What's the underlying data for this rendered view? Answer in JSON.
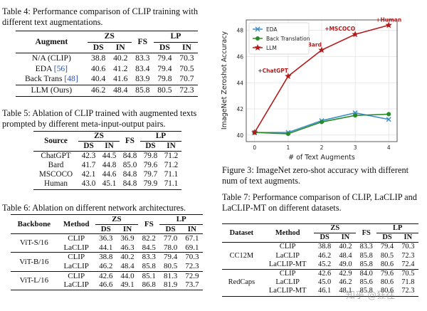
{
  "table4": {
    "caption_label": "Table 4:",
    "caption_text": "Performance comparison of CLIP training with different text augmentations.",
    "header": {
      "col0": "Augment",
      "zs": "ZS",
      "fs": "FS",
      "lp": "LP",
      "ds": "DS",
      "in": "IN",
      "ds2": "DS",
      "in2": "IN"
    },
    "rows": [
      {
        "name": "N/A (CLIP)",
        "ref": "",
        "vals": [
          "38.8",
          "40.2",
          "83.3",
          "79.4",
          "70.3"
        ]
      },
      {
        "name": "EDA ",
        "ref": "[56]",
        "vals": [
          "40.6",
          "41.2",
          "83.4",
          "79.4",
          "70.5"
        ]
      },
      {
        "name": "Back Trans ",
        "ref": "[48]",
        "vals": [
          "40.4",
          "41.6",
          "83.9",
          "79.8",
          "70.7"
        ]
      },
      {
        "name": "LLM (Ours)",
        "ref": "",
        "vals": [
          "46.2",
          "48.4",
          "85.8",
          "80.5",
          "72.3"
        ]
      }
    ]
  },
  "table5": {
    "caption_label": "Table 5:",
    "caption_text": "Ablation of CLIP trained with augmented texts prompted by different meta-input-output pairs.",
    "header": {
      "col0": "Source",
      "zs": "ZS",
      "fs": "FS",
      "lp": "LP",
      "ds": "DS",
      "in": "IN",
      "ds2": "DS",
      "in2": "IN"
    },
    "rows": [
      {
        "name": "ChatGPT",
        "vals": [
          "42.3",
          "44.5",
          "84.8",
          "79.8",
          "71.2"
        ]
      },
      {
        "name": "Bard",
        "vals": [
          "41.7",
          "44.8",
          "85.0",
          "79.6",
          "71.2"
        ]
      },
      {
        "name": "MSCOCO",
        "vals": [
          "42.1",
          "44.6",
          "84.8",
          "79.7",
          "71.1"
        ]
      },
      {
        "name": "Human",
        "vals": [
          "43.0",
          "45.1",
          "84.8",
          "79.9",
          "71.1"
        ]
      }
    ]
  },
  "table6": {
    "caption_label": "Table 6:",
    "caption_text": "Ablation on different network architectures.",
    "header": {
      "col0": "Backbone",
      "col1": "Method",
      "zs": "ZS",
      "fs": "FS",
      "lp": "LP",
      "ds": "DS",
      "in": "IN",
      "ds2": "DS",
      "in2": "IN"
    },
    "groups": [
      {
        "name": "ViT-S/16",
        "rows": [
          {
            "method": "CLIP",
            "vals": [
              "36.3",
              "36.9",
              "82.2",
              "77.0",
              "67.1"
            ]
          },
          {
            "method": "LaCLIP",
            "vals": [
              "44.1",
              "46.3",
              "84.5",
              "78.0",
              "69.1"
            ]
          }
        ]
      },
      {
        "name": "ViT-B/16",
        "rows": [
          {
            "method": "CLIP",
            "vals": [
              "38.8",
              "40.2",
              "83.3",
              "79.4",
              "70.3"
            ]
          },
          {
            "method": "LaCLIP",
            "vals": [
              "46.2",
              "48.4",
              "85.8",
              "80.5",
              "72.3"
            ]
          }
        ]
      },
      {
        "name": "ViT-L/16",
        "rows": [
          {
            "method": "CLIP",
            "vals": [
              "42.6",
              "44.0",
              "85.1",
              "81.3",
              "72.9"
            ]
          },
          {
            "method": "LaCLIP",
            "vals": [
              "46.6",
              "49.1",
              "86.8",
              "81.9",
              "73.7"
            ]
          }
        ]
      }
    ]
  },
  "table7": {
    "caption_label": "Table 7:",
    "caption_text": "Performance comparison of CLIP, LaCLIP and LaCLIP-MT on different datasets.",
    "header": {
      "col0": "Dataset",
      "col1": "Method",
      "zs": "ZS",
      "fs": "FS",
      "lp": "LP",
      "ds": "DS",
      "in": "IN",
      "ds2": "DS",
      "in2": "IN"
    },
    "groups": [
      {
        "name": "CC12M",
        "rows": [
          {
            "method": "CLIP",
            "vals": [
              "38.8",
              "40.2",
              "83.3",
              "79.4",
              "70.3"
            ]
          },
          {
            "method": "LaCLIP",
            "vals": [
              "46.2",
              "48.4",
              "85.8",
              "80.5",
              "72.3"
            ]
          },
          {
            "method": "LaCLIP-MT",
            "vals": [
              "45.2",
              "49.0",
              "85.8",
              "80.6",
              "72.4"
            ]
          }
        ]
      },
      {
        "name": "RedCaps",
        "rows": [
          {
            "method": "CLIP",
            "vals": [
              "42.6",
              "42.9",
              "84.0",
              "79.6",
              "70.5"
            ]
          },
          {
            "method": "LaCLIP",
            "vals": [
              "45.0",
              "46.2",
              "85.6",
              "80.6",
              "71.8"
            ]
          },
          {
            "method": "LaCLIP-MT",
            "vals": [
              "46.1",
              "48.1",
              "85.8",
              "80.6",
              "72.3"
            ]
          }
        ]
      }
    ]
  },
  "figure3": {
    "caption_label": "Figure 3:",
    "caption_text": "ImageNet zero-shot accuracy with different num of text augments."
  },
  "watermark": "知乎 @狂往",
  "colors": {
    "eda": "#3d8fc4",
    "back_translation": "#2a8a2a",
    "llm": "#b31b1b",
    "annotation": "#b31b1b"
  },
  "chart_data": {
    "type": "line",
    "title": "",
    "xlabel": "# of Text Augments",
    "ylabel": "ImageNet Zeroshot Accuracy",
    "x": [
      0,
      1,
      2,
      3,
      4
    ],
    "xlim": [
      -0.25,
      4.25
    ],
    "ylim": [
      39.5,
      48.8
    ],
    "xticks": [
      "0",
      "1",
      "2",
      "3",
      "4"
    ],
    "yticks": [
      "40",
      "42",
      "44",
      "46",
      "48"
    ],
    "legend_position": "top-left",
    "grid": true,
    "series": [
      {
        "name": "EDA",
        "values": [
          40.2,
          40.2,
          41.1,
          41.7,
          41.2
        ],
        "marker": "x"
      },
      {
        "name": "Back Translation",
        "values": [
          40.2,
          40.1,
          41.0,
          41.5,
          41.6
        ],
        "marker": "dot"
      },
      {
        "name": "LLM",
        "values": [
          40.2,
          44.5,
          46.5,
          47.7,
          48.4
        ],
        "marker": "star"
      }
    ],
    "annotations": [
      "+ChatGPT",
      "+Bard",
      "+MSCOCO",
      "+Human"
    ]
  }
}
